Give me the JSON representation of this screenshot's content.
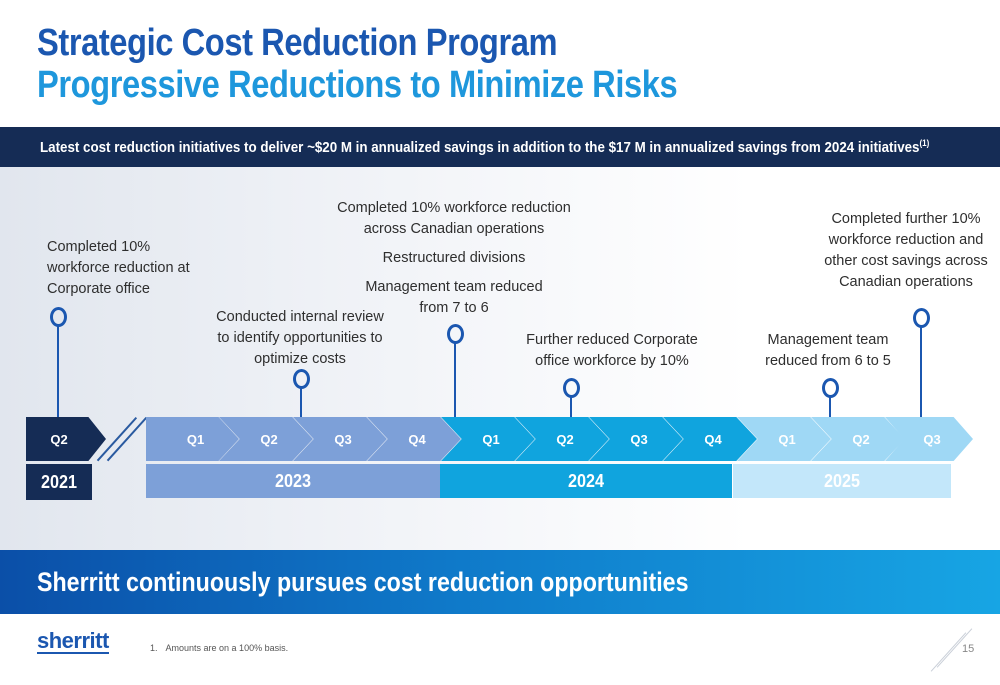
{
  "header": {
    "title": "Strategic Cost Reduction Program",
    "subtitle": "Progressive Reductions to Minimize Risks"
  },
  "banner": {
    "text": "Latest cost reduction initiatives to deliver ~$20 M in annualized savings in addition to the $17 M in annualized savings from 2024 initiatives",
    "footnote_ref": "(1)"
  },
  "timeline": {
    "q2021": "Q2",
    "q2023": [
      "Q1",
      "Q2",
      "Q3",
      "Q4"
    ],
    "q2024": [
      "Q1",
      "Q2",
      "Q3",
      "Q4"
    ],
    "q2025": [
      "Q1",
      "Q2",
      "Q3"
    ],
    "years": [
      "2021",
      "2023",
      "2024",
      "2025"
    ]
  },
  "milestones": {
    "m2021_q2": [
      "Completed 10%",
      "workforce reduction at",
      "Corporate office"
    ],
    "m2023_q3": [
      "Conducted internal review",
      "to identify opportunities to",
      "optimize costs"
    ],
    "m2024_q1": {
      "a": [
        "Completed 10% workforce reduction",
        "across Canadian operations"
      ],
      "b": "Restructured divisions",
      "c": [
        "Management team reduced",
        "from 7 to 6"
      ]
    },
    "m2024_q2": [
      "Further reduced Corporate",
      "office workforce  by 10%"
    ],
    "m2025_q2": [
      "Management team",
      "reduced from 6 to 5"
    ],
    "m2025_q3": [
      "Completed further 10%",
      "workforce reduction and",
      "other cost savings across",
      "Canadian operations"
    ]
  },
  "bottom_banner": "Sherritt continuously pursues cost reduction opportunities",
  "footer": {
    "logo": "sherritt",
    "footnote_num": "1.",
    "footnote_text": "Amounts are on a 100% basis.",
    "page_number": "15"
  },
  "colors": {
    "dark_navy": "#152c55",
    "title_blue": "#1b57b0",
    "subtitle_blue": "#1e97dc",
    "y2023": "#7da0d8",
    "y2024": "#10a4de",
    "y2025": "#9fd8f5"
  }
}
